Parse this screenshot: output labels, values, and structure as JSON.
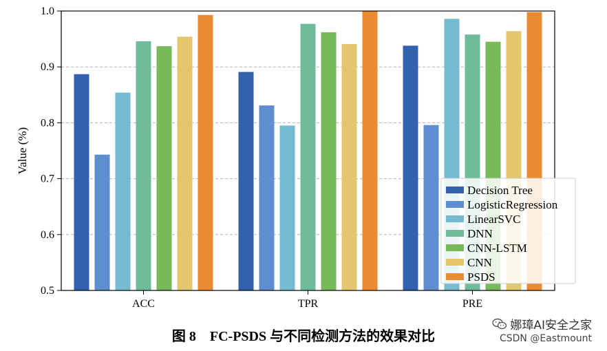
{
  "chart_data": {
    "type": "bar",
    "categories": [
      "ACC",
      "TPR",
      "PRE"
    ],
    "series": [
      {
        "name": "Decision Tree",
        "color": "#3361ad",
        "values": [
          0.887,
          0.891,
          0.938
        ]
      },
      {
        "name": "LogisticRegression",
        "color": "#5f8ed0",
        "values": [
          0.743,
          0.831,
          0.796
        ]
      },
      {
        "name": "LinearSVC",
        "color": "#74bad0",
        "values": [
          0.854,
          0.795,
          0.986
        ]
      },
      {
        "name": "DNN",
        "color": "#6fbc9b",
        "values": [
          0.946,
          0.977,
          0.958
        ]
      },
      {
        "name": "CNN-LSTM",
        "color": "#78b95a",
        "values": [
          0.937,
          0.962,
          0.945
        ]
      },
      {
        "name": "CNN",
        "color": "#e4c66e",
        "values": [
          0.954,
          0.941,
          0.964
        ]
      },
      {
        "name": "PSDS",
        "color": "#ea8a32",
        "values": [
          0.993,
          1.0,
          0.998
        ]
      }
    ],
    "title": "",
    "xlabel": "",
    "ylabel": "Value (%)",
    "ylim": [
      0.5,
      1.0
    ],
    "yticks": [
      "0.5",
      "0.6",
      "0.7",
      "0.8",
      "0.9",
      "1.0"
    ],
    "grid": "horizontal dashed",
    "legend_position": "bottom-right"
  },
  "caption": "图 8　FC-PSDS 与不同检测方法的效果对比",
  "watermark": {
    "line1": "娜璋AI安全之家",
    "line2": "CSDN @Eastmount",
    "icon": "wechat-icon"
  }
}
